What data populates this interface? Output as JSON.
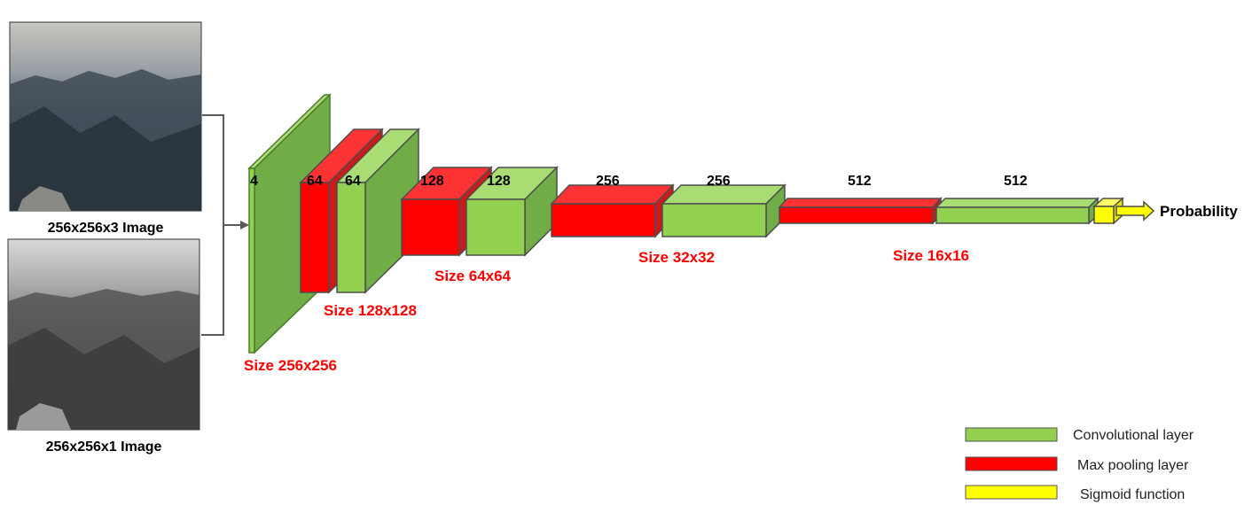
{
  "inputs": {
    "rgb_caption": "256x256x3 Image",
    "gray_caption": "256x256x1 Image"
  },
  "layers": {
    "input_channels": "4",
    "pool1_channels": "64",
    "conv1_channels": "64",
    "pool2_channels": "128",
    "conv2_channels": "128",
    "pool3_channels": "256",
    "conv3_channels": "256",
    "pool4_channels": "512",
    "conv4_channels": "512"
  },
  "sizes": {
    "s256": "Size 256x256",
    "s128": "Size 128x128",
    "s64": "Size 64x64",
    "s32": "Size 32x32",
    "s16": "Size 16x16"
  },
  "output": {
    "label": "Probability"
  },
  "legend": {
    "conv": "Convolutional layer",
    "pool": "Max pooling layer",
    "sigmoid": "Sigmoid function"
  },
  "colors": {
    "conv_front": "#92d050",
    "conv_top": "#a9dc73",
    "conv_side": "#70ad47",
    "pool_front": "#ff0000",
    "pool_top": "#ff3333",
    "pool_side": "#cc1a1a",
    "sigmoid": "#ffff00",
    "label_red": "#ff0000"
  }
}
